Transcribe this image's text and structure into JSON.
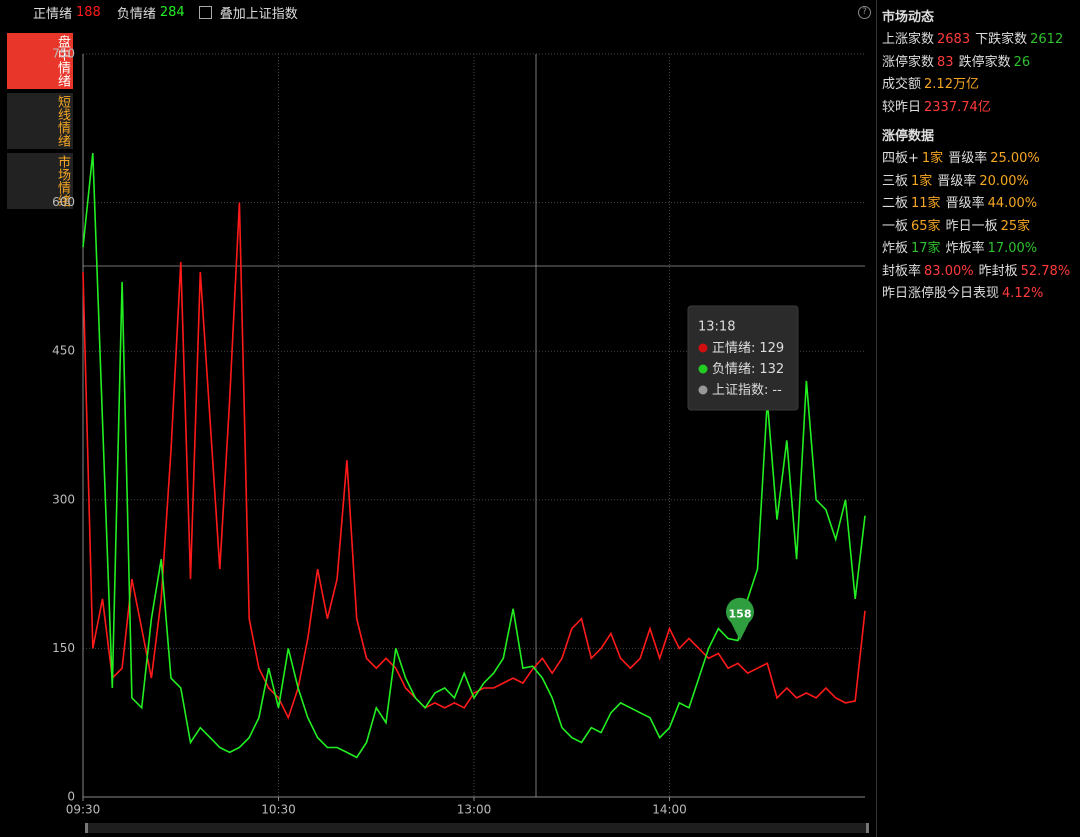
{
  "tabs": [
    "盘中情绪",
    "短线情绪",
    "市场情绪"
  ],
  "overlay_label": "叠加上证指数",
  "chart_data": {
    "type": "line",
    "categories": [
      "09:30",
      null,
      null,
      null,
      null,
      null,
      null,
      null,
      null,
      null,
      null,
      null,
      null,
      null,
      null,
      null,
      null,
      null,
      null,
      null,
      "10:30",
      null,
      null,
      null,
      null,
      null,
      null,
      null,
      null,
      null,
      null,
      null,
      null,
      null,
      null,
      null,
      null,
      null,
      null,
      null,
      "13:00",
      null,
      null,
      null,
      null,
      null,
      null,
      null,
      null,
      null,
      null,
      null,
      null,
      null,
      null,
      null,
      null,
      null,
      null,
      null,
      "14:00",
      null,
      null,
      null,
      null,
      null,
      null,
      null,
      null,
      null,
      null,
      null,
      null,
      null,
      null,
      null,
      null,
      null,
      null,
      null,
      null
    ],
    "series": [
      {
        "name": "正情绪",
        "color": "#ff1a1a",
        "values": [
          530,
          150,
          200,
          120,
          130,
          220,
          170,
          120,
          200,
          350,
          540,
          220,
          530,
          380,
          230,
          400,
          600,
          180,
          130,
          110,
          100,
          80,
          110,
          160,
          230,
          180,
          220,
          340,
          180,
          140,
          130,
          140,
          130,
          110,
          100,
          90,
          95,
          90,
          95,
          90,
          105,
          110,
          110,
          115,
          120,
          115,
          129,
          140,
          125,
          140,
          170,
          180,
          140,
          150,
          165,
          140,
          130,
          140,
          170,
          140,
          170,
          150,
          160,
          150,
          140,
          145,
          130,
          135,
          125,
          130,
          135,
          100,
          110,
          100,
          105,
          100,
          110,
          100,
          95,
          97,
          188
        ]
      },
      {
        "name": "负情绪",
        "color": "#22ee22",
        "values": [
          555,
          650,
          380,
          110,
          520,
          100,
          90,
          180,
          240,
          120,
          110,
          55,
          70,
          60,
          50,
          45,
          50,
          60,
          80,
          130,
          90,
          150,
          110,
          80,
          60,
          50,
          50,
          45,
          40,
          55,
          90,
          75,
          150,
          120,
          100,
          90,
          105,
          110,
          100,
          125,
          100,
          115,
          125,
          140,
          190,
          130,
          132,
          120,
          100,
          70,
          60,
          55,
          70,
          65,
          85,
          95,
          90,
          85,
          80,
          60,
          70,
          95,
          90,
          120,
          150,
          170,
          160,
          158,
          200,
          230,
          400,
          280,
          360,
          240,
          420,
          300,
          290,
          260,
          300,
          200,
          284
        ]
      }
    ],
    "ylim": [
      0,
      750
    ],
    "yticks": [
      0,
      150,
      300,
      450,
      600,
      750
    ],
    "grid": true,
    "mark_point": {
      "label": 158,
      "color": "#2e9e3e"
    },
    "tooltip": {
      "time": "13:18",
      "items": [
        {
          "label": "正情绪:",
          "value": 129,
          "color": "#d01010"
        },
        {
          "label": "负情绪:",
          "value": 132,
          "color": "#22cc22"
        },
        {
          "label": "上证指数:",
          "value": "--",
          "color": "#999999"
        }
      ]
    }
  },
  "sidebar": [
    {
      "title": "市场动态",
      "rows": [
        [
          {
            "label": "上涨家数",
            "value": "2683",
            "color": "#ff3b3b"
          },
          {
            "label": "下跌家数",
            "value": "2612",
            "color": "#2fc02f"
          }
        ],
        [
          {
            "label": "涨停家数",
            "value": "83",
            "color": "#ff3b3b"
          },
          {
            "label": "跌停家数",
            "value": "26",
            "color": "#2fc02f"
          }
        ],
        [
          {
            "label": "成交额",
            "value": "2.12万亿",
            "color": "#f5a623"
          }
        ],
        [
          {
            "label": "较昨日",
            "value": "2337.74亿",
            "color": "#ff3b3b"
          }
        ]
      ]
    },
    {
      "title": "涨停数据",
      "rows": [
        [
          {
            "label": "四板+",
            "value": "1家",
            "color": "#f5a623"
          },
          {
            "label": "晋级率",
            "value": "25.00%",
            "color": "#f5a623"
          }
        ],
        [
          {
            "label": "三板",
            "value": "1家",
            "color": "#f5a623"
          },
          {
            "label": "晋级率",
            "value": "20.00%",
            "color": "#f5a623"
          }
        ],
        [
          {
            "label": "二板",
            "value": "11家",
            "color": "#f5a623"
          },
          {
            "label": "晋级率",
            "value": "44.00%",
            "color": "#f5a623"
          }
        ],
        [
          {
            "label": "一板",
            "value": "65家",
            "color": "#f5a623"
          },
          {
            "label": "昨日一板",
            "value": "25家",
            "color": "#f5a623"
          }
        ],
        [
          {
            "label": "炸板",
            "value": "17家",
            "color": "#2fc02f"
          },
          {
            "label": "炸板率",
            "value": "17.00%",
            "color": "#2fc02f"
          }
        ],
        [
          {
            "label": "封板率",
            "value": "83.00%",
            "color": "#ff3b3b"
          },
          {
            "label": "昨封板",
            "value": "52.78%",
            "color": "#ff3b3b"
          }
        ],
        [
          {
            "label": "昨日涨停股今日表现",
            "value": "4.12%",
            "color": "#ff3b3b"
          }
        ]
      ]
    }
  ]
}
